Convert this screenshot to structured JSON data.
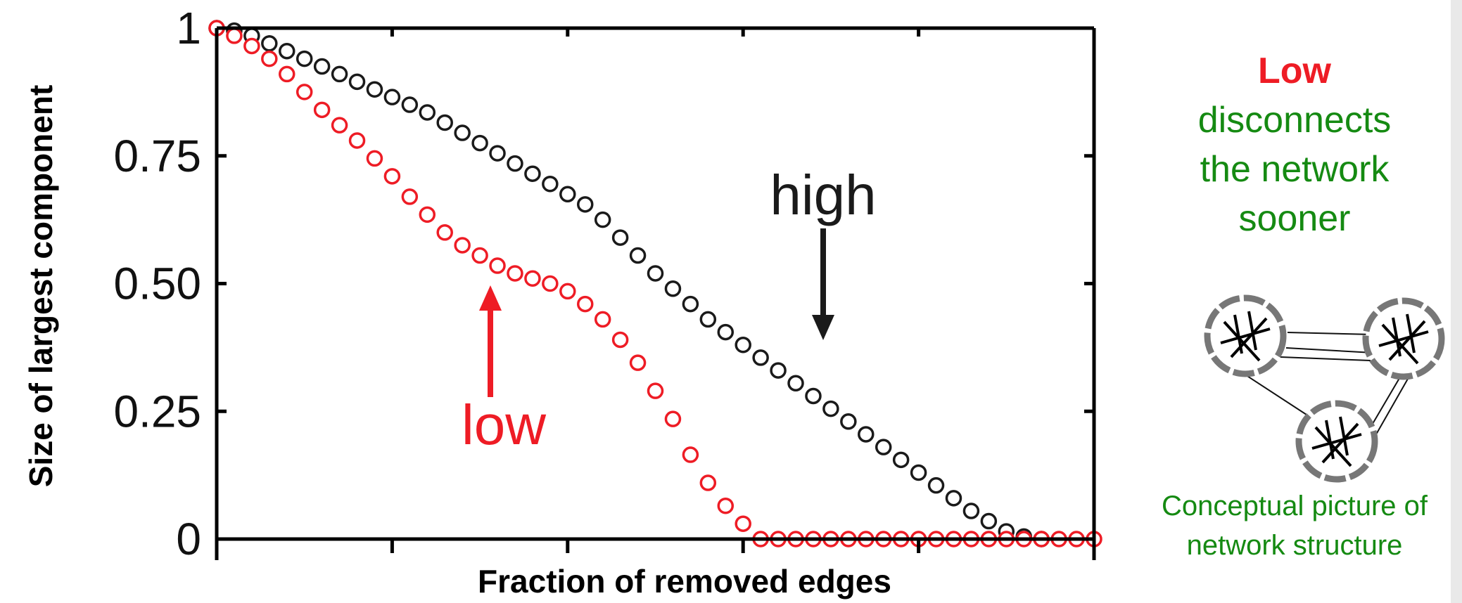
{
  "chart_data": {
    "type": "scatter",
    "title": "",
    "xlabel": "Fraction of removed edges",
    "ylabel": "Size of largest component",
    "xlim": [
      0,
      1
    ],
    "ylim": [
      0,
      1
    ],
    "yticks": [
      "0",
      "0.25",
      "0.50",
      "0.75",
      "1"
    ],
    "ytick_values": [
      0,
      0.25,
      0.5,
      0.75,
      1
    ],
    "xticks_labeled": false,
    "marker": "open-circle",
    "series": [
      {
        "name": "high",
        "color": "#1a1a1a",
        "x": [
          0,
          0.02,
          0.04,
          0.06,
          0.08,
          0.1,
          0.12,
          0.14,
          0.16,
          0.18,
          0.2,
          0.22,
          0.24,
          0.26,
          0.28,
          0.3,
          0.32,
          0.34,
          0.36,
          0.38,
          0.4,
          0.42,
          0.44,
          0.46,
          0.48,
          0.5,
          0.52,
          0.54,
          0.56,
          0.58,
          0.6,
          0.62,
          0.64,
          0.66,
          0.68,
          0.7,
          0.72,
          0.74,
          0.76,
          0.78,
          0.8,
          0.82,
          0.84,
          0.86,
          0.88,
          0.9,
          0.92,
          0.94
        ],
        "y": [
          1.0,
          0.995,
          0.985,
          0.97,
          0.955,
          0.94,
          0.925,
          0.91,
          0.895,
          0.88,
          0.865,
          0.85,
          0.835,
          0.815,
          0.795,
          0.775,
          0.755,
          0.735,
          0.715,
          0.695,
          0.675,
          0.655,
          0.625,
          0.59,
          0.555,
          0.52,
          0.49,
          0.46,
          0.43,
          0.405,
          0.38,
          0.355,
          0.33,
          0.305,
          0.28,
          0.255,
          0.23,
          0.205,
          0.18,
          0.155,
          0.13,
          0.105,
          0.08,
          0.055,
          0.035,
          0.015,
          0.005,
          0.0
        ]
      },
      {
        "name": "low",
        "color": "#ee1c25",
        "x": [
          0,
          0.02,
          0.04,
          0.06,
          0.08,
          0.1,
          0.12,
          0.14,
          0.16,
          0.18,
          0.2,
          0.22,
          0.24,
          0.26,
          0.28,
          0.3,
          0.32,
          0.34,
          0.36,
          0.38,
          0.4,
          0.42,
          0.44,
          0.46,
          0.48,
          0.5,
          0.52,
          0.54,
          0.56,
          0.58,
          0.6,
          0.62,
          0.64,
          0.66,
          0.68,
          0.7,
          0.72,
          0.74,
          0.76,
          0.78,
          0.8,
          0.82,
          0.84,
          0.86,
          0.88,
          0.9,
          0.92,
          0.94,
          0.96,
          0.98,
          1.0
        ],
        "y": [
          1.0,
          0.985,
          0.965,
          0.94,
          0.91,
          0.875,
          0.84,
          0.81,
          0.78,
          0.745,
          0.71,
          0.67,
          0.635,
          0.6,
          0.575,
          0.555,
          0.535,
          0.52,
          0.51,
          0.5,
          0.485,
          0.46,
          0.43,
          0.39,
          0.345,
          0.29,
          0.235,
          0.165,
          0.11,
          0.065,
          0.03,
          0.0,
          0.0,
          0.0,
          0.0,
          0.0,
          0.0,
          0.0,
          0.0,
          0.0,
          0.0,
          0.0,
          0.0,
          0.0,
          0.0,
          0.0,
          0.0,
          0.0,
          0.0,
          0.0,
          0.0
        ]
      }
    ],
    "annotations": [
      {
        "text": "high",
        "color": "#1a1a1a",
        "arrow": "down"
      },
      {
        "text": "low",
        "color": "#ee1c25",
        "arrow": "up"
      }
    ]
  },
  "side_text": {
    "headline_emph": "Low",
    "headline_rest": "disconnects the network sooner",
    "caption": "Conceptual picture of network structure",
    "headline_emph_color": "#ee1c25",
    "text_color": "#158a12"
  }
}
